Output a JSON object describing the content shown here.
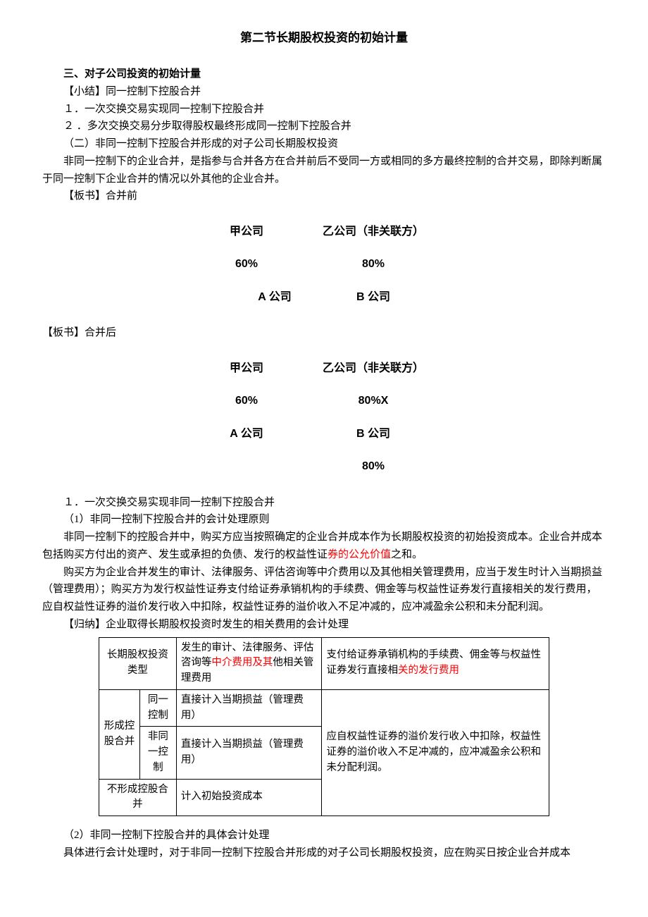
{
  "title": "第二节长期股权投资的初始计量",
  "h3": "三、对子公司投资的初始计量",
  "p1": "【小结】同一控制下控股合并",
  "p2": "１．一次交换交易实现同一控制下控股合并",
  "p3": "２ ．多次交换交易分步取得股权最终形成同一控制下控股合并",
  "p4": "（二）非同一控制下控股合并形成的对子公司长期股权投资",
  "p5": "非同一控制下的企业合并，是指参与合并各方在合并前后不受同一方或相同的多方最终控制的合并交易，即除判断属于同一控制下企业合并的情况以外其他的企业合并。",
  "p6": "【板书】合并前",
  "diagram1": {
    "r1a": "甲公司",
    "r1b": "乙公司（非关联方）",
    "r2a": "60%",
    "r2b": "80%",
    "r3a": "A 公司",
    "r3b": "B 公司"
  },
  "p7": "【板书】合并后",
  "diagram2": {
    "r1a": "甲公司",
    "r1b": "乙公司（非关联方）",
    "r2a": "60%",
    "r2b": "80%X",
    "r3a": "A 公司",
    "r3b": "B 公司",
    "r4b": "80%"
  },
  "p8": "１．一次交换交易实现非同一控制下控股合并",
  "p9": "（1）非同一控制下控股合并的会计处理原则",
  "p10a": "非同一控制下的控股合并中，购买方应当按照确定的企业合并成本作为长期股权投资的初始投资成本。企业合并成本包括购买方付出的资产、发生或承担的负债、发行的权益性证",
  "p10b": "券的公允价值",
  "p10c": "之和。",
  "p11": "购买方为企业合并发生的审计、法律服务、评估咨询等中介费用以及其他相关管理费用，应当于发生时计入当期损益（管理费用）；购买方为发行权益性证券支付给证券承销机构的手续费、佣金等与权益性证券发行直接相关的发行费用，应自权益性证券的溢价发行收入中扣除，权益性证券的溢价收入不足冲减的，应冲减盈余公积和未分配利润。",
  "p12": "【归纳】企业取得长期股权投资时发生的相关费用的会计处理",
  "table": {
    "h1": "长期股权投资类型",
    "h2a": "发生的审计、法律服务、评估咨询等",
    "h2b": "中介费用及其",
    "h2c": "他相关管理费用",
    "h3a": "支付给证券承销机构的手续费、佣金等与权益性证券发行直接相",
    "h3b": "关的发行费用",
    "r1c1": "形成控股合并",
    "r1c2": "同一控制",
    "r1c3": "直接计入当期损益（管理费用）",
    "r1c4": "应自权益性证券的溢价发行收入中扣除，权益性证券的溢价收入不足冲减的，应冲减盈余公积和未分配利润。",
    "r2c2": "非同一控制",
    "r2c3": "直接计入当期损益（管理费用）",
    "r3c1": "不形成控股合并",
    "r3c3": "计入初始投资成本"
  },
  "p13": "（2）非同一控制下控股合并的具体会计处理",
  "p14": "具体进行会计处理时，对于非同一控制下控股合并形成的对子公司长期股权投资，应在购买日按企业合并成本"
}
